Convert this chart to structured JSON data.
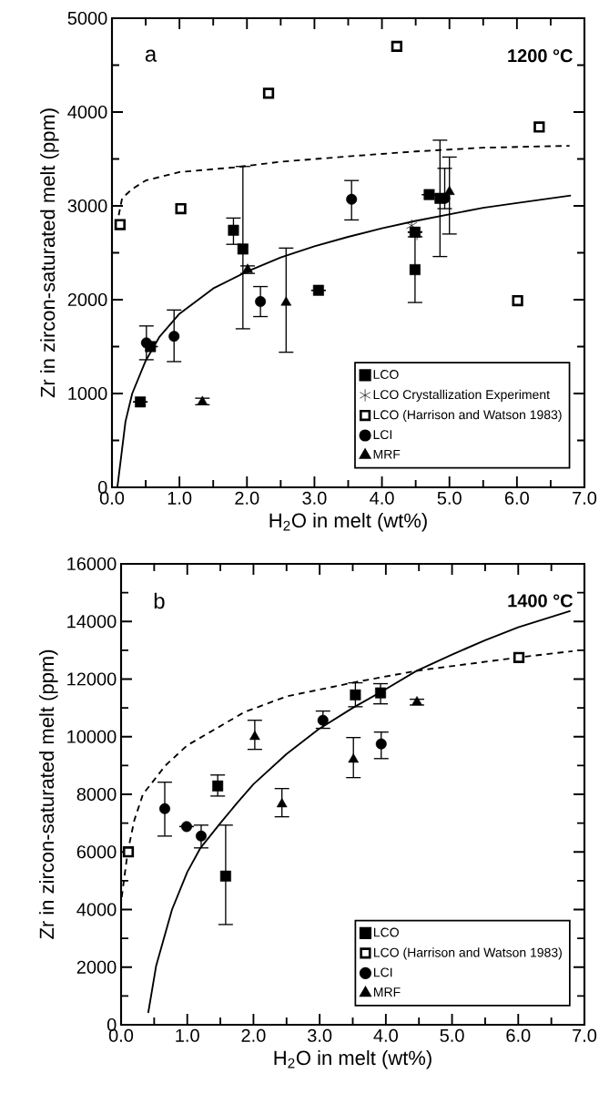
{
  "chart_data": [
    {
      "type": "scatter",
      "xlabel": "H$_{2}$O in melt (wt%)",
      "ylabel": "Zr in zircon-saturated melt (ppm)",
      "annotations": [
        "a",
        "1200 °C"
      ],
      "xlim": [
        0,
        7
      ],
      "ylim": [
        0,
        5000
      ],
      "xticks": [
        {
          "value": 0,
          "label": "0.0"
        },
        {
          "value": 1,
          "label": "1.0"
        },
        {
          "value": 2,
          "label": "2.0"
        },
        {
          "value": 3,
          "label": "3.0"
        },
        {
          "value": 4,
          "label": "4.0"
        },
        {
          "value": 5,
          "label": "5.0"
        },
        {
          "value": 6,
          "label": "6.0"
        },
        {
          "value": 7,
          "label": "7.0"
        }
      ],
      "yticks": [
        0,
        1000,
        2000,
        3000,
        4000,
        5000
      ],
      "legend": "bottom right",
      "series": [
        {
          "name": "LCO",
          "color": "#000000",
          "marker": "square",
          "x": [
            0.42,
            0.57,
            1.8,
            1.94,
            3.06,
            4.49,
            4.49,
            4.7,
            4.86
          ],
          "values": [
            910,
            1500,
            2740,
            2540,
            2100,
            2720,
            2320,
            3120,
            3080
          ],
          "errors": [
            null,
            null,
            [
              2590,
              2870
            ],
            [
              1690,
              3420
            ],
            null,
            null,
            [
              1970,
              2670
            ],
            null,
            [
              2460,
              3700
            ]
          ]
        },
        {
          "name": "LCO Crystallization Experiment",
          "color": "#000000",
          "marker": "cross",
          "x": [
            4.44,
            4.52
          ],
          "values": [
            2790,
            2700
          ]
        },
        {
          "name": "LCO (Harrison and Watson 1983)",
          "color": "#000000",
          "marker": "square",
          "x": [
            0.12,
            1.02,
            2.32,
            4.22,
            6.01,
            6.33
          ],
          "values": [
            2800,
            2970,
            4200,
            4700,
            1990,
            3840
          ]
        },
        {
          "name": "LCI",
          "color": "#000000",
          "marker": "circle",
          "x": [
            0.51,
            0.92,
            2.2,
            3.55,
            4.93
          ],
          "values": [
            1540,
            1610,
            1980,
            3070,
            3080
          ],
          "errors": [
            [
              1360,
              1720
            ],
            [
              1340,
              1890
            ],
            [
              1820,
              2140
            ],
            [
              2850,
              3270
            ],
            [
              2970,
              3400
            ]
          ]
        },
        {
          "name": "MRF",
          "color": "#000000",
          "marker": "triangle",
          "x": [
            1.34,
            2.01,
            2.58,
            5.0
          ],
          "values": [
            910,
            2320,
            1970,
            3150
          ],
          "errors": [
            [
              880,
              950
            ],
            [
              2280,
              2360
            ],
            [
              1440,
              2550
            ],
            [
              2700,
              3520
            ]
          ]
        },
        {
          "type": "line",
          "color": "#000000",
          "line_style": "solid",
          "marker": "none",
          "x": [
            0.08,
            0.2,
            0.3,
            0.5,
            0.7,
            1.0,
            1.5,
            2.0,
            2.5,
            3.0,
            3.5,
            4.0,
            4.5,
            5.0,
            5.5,
            6.0,
            6.8
          ],
          "values": [
            0,
            700,
            1000,
            1350,
            1600,
            1850,
            2120,
            2300,
            2450,
            2570,
            2670,
            2760,
            2840,
            2910,
            2980,
            3030,
            3110
          ]
        },
        {
          "type": "line",
          "color": "#000000",
          "line_style": "dashed",
          "marker": "none",
          "x": [
            0.1,
            0.15,
            0.3,
            0.5,
            1.0,
            1.81,
            2.5,
            3.55,
            4.5,
            5.5,
            6.78
          ],
          "values": [
            2900,
            3080,
            3180,
            3270,
            3360,
            3410,
            3470,
            3530,
            3580,
            3620,
            3640
          ]
        }
      ]
    },
    {
      "type": "scatter",
      "xlabel": "H$_{2}$O in melt (wt%)",
      "ylabel": "Zr in zircon-saturated melt (ppm)",
      "annotations": [
        "b",
        "1400 °C"
      ],
      "xlim": [
        0,
        7
      ],
      "ylim": [
        0,
        16000
      ],
      "xticks": [
        {
          "value": 0,
          "label": "0.0"
        },
        {
          "value": 1,
          "label": "1.0"
        },
        {
          "value": 2,
          "label": "2.0"
        },
        {
          "value": 3,
          "label": "3.0"
        },
        {
          "value": 4,
          "label": "4.0"
        },
        {
          "value": 5,
          "label": "5.0"
        },
        {
          "value": 6,
          "label": "6.0"
        },
        {
          "value": 7,
          "label": "7.0"
        }
      ],
      "yticks": [
        0,
        2000,
        4000,
        6000,
        8000,
        10000,
        12000,
        14000,
        16000
      ],
      "legend": "bottom right",
      "series": [
        {
          "name": "LCO",
          "color": "#000000",
          "marker": "square",
          "x": [
            1.46,
            1.58,
            3.54,
            3.92
          ],
          "values": [
            8290,
            5160,
            11450,
            11520
          ],
          "errors": [
            [
              7940,
              8670
            ],
            [
              3480,
              6930
            ],
            [
              11040,
              11870
            ],
            [
              11140,
              11840
            ]
          ]
        },
        {
          "name": "LCO (Harrison and Watson 1983)",
          "color": "#000000",
          "marker": "square",
          "x": [
            0.11,
            6.01
          ],
          "values": [
            6000,
            12750
          ]
        },
        {
          "name": "LCI",
          "color": "#000000",
          "marker": "circle",
          "x": [
            0.66,
            0.99,
            1.21,
            3.05,
            3.93
          ],
          "values": [
            7500,
            6880,
            6550,
            10570,
            9750
          ],
          "errors": [
            [
              6550,
              8420
            ],
            null,
            [
              6140,
              6930
            ],
            [
              10290,
              10890
            ],
            [
              9240,
              10160
            ]
          ]
        },
        {
          "name": "MRF",
          "color": "#000000",
          "marker": "triangle",
          "x": [
            2.02,
            2.43,
            3.51,
            4.47
          ],
          "values": [
            10000,
            7660,
            9210,
            11200
          ],
          "errors": [
            [
              9560,
              10570
            ],
            [
              7220,
              8200
            ],
            [
              8580,
              9970
            ],
            [
              11100,
              11300
            ]
          ]
        },
        {
          "type": "line",
          "color": "#000000",
          "line_style": "solid",
          "marker": "none",
          "x": [
            0.41,
            0.53,
            0.77,
            1.0,
            1.2,
            1.5,
            1.76,
            2.0,
            2.5,
            2.98,
            3.5,
            4.0,
            4.46,
            5.0,
            5.5,
            6.0,
            6.79
          ],
          "values": [
            410,
            2050,
            4000,
            5300,
            6140,
            7000,
            7720,
            8350,
            9400,
            10250,
            11000,
            11650,
            12280,
            12850,
            13350,
            13800,
            14370
          ]
        },
        {
          "type": "line",
          "color": "#000000",
          "line_style": "dashed",
          "marker": "none",
          "x": [
            0.01,
            0.1,
            0.2,
            0.33,
            0.67,
            1.0,
            1.86,
            2.5,
            3.62,
            4.5,
            6.0,
            6.82
          ],
          "values": [
            4430,
            6000,
            7100,
            8000,
            9000,
            9700,
            10850,
            11400,
            11930,
            12300,
            12750,
            12970
          ]
        }
      ]
    }
  ]
}
